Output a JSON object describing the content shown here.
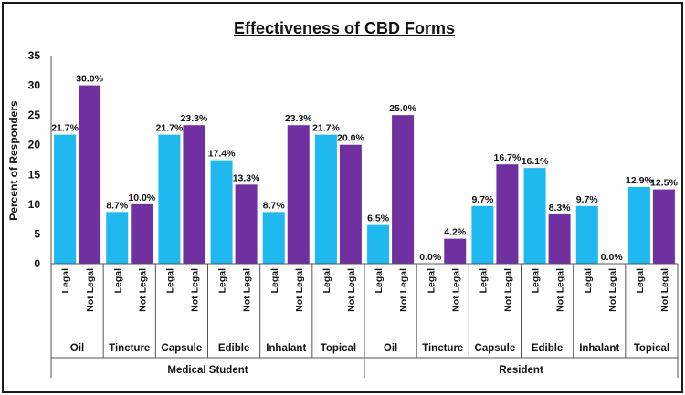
{
  "chart_data": {
    "type": "bar",
    "title": "Effectiveness of CBD Forms",
    "xlabel": "",
    "ylabel": "Percent of Responders",
    "ylim": [
      0,
      35
    ],
    "yticks": [
      "0",
      "5",
      "10",
      "15",
      "20",
      "25",
      "30",
      "35"
    ],
    "legal_color": "#1fb8ef",
    "not_legal_color": "#7030a0",
    "groups": [
      {
        "name": "Medical Student",
        "forms": [
          {
            "form": "Oil",
            "bars": [
              {
                "label": "Legal",
                "value": 21.7,
                "text": "21.7%"
              },
              {
                "label": "Not Legal",
                "value": 30.0,
                "text": "30.0%"
              }
            ]
          },
          {
            "form": "Tincture",
            "bars": [
              {
                "label": "Legal",
                "value": 8.7,
                "text": "8.7%"
              },
              {
                "label": "Not Legal",
                "value": 10.0,
                "text": "10.0%"
              }
            ]
          },
          {
            "form": "Capsule",
            "bars": [
              {
                "label": "Legal",
                "value": 21.7,
                "text": "21.7%"
              },
              {
                "label": "Not Legal",
                "value": 23.3,
                "text": "23.3%"
              }
            ]
          },
          {
            "form": "Edible",
            "bars": [
              {
                "label": "Legal",
                "value": 17.4,
                "text": "17.4%"
              },
              {
                "label": "Not Legal",
                "value": 13.3,
                "text": "13.3%"
              }
            ]
          },
          {
            "form": "Inhalant",
            "bars": [
              {
                "label": "Legal",
                "value": 8.7,
                "text": "8.7%"
              },
              {
                "label": "Not Legal",
                "value": 23.3,
                "text": "23.3%"
              }
            ]
          },
          {
            "form": "Topical",
            "bars": [
              {
                "label": "Legal",
                "value": 21.7,
                "text": "21.7%"
              },
              {
                "label": "Not Legal",
                "value": 20.0,
                "text": "20.0%"
              }
            ]
          }
        ]
      },
      {
        "name": "Resident",
        "forms": [
          {
            "form": "Oil",
            "bars": [
              {
                "label": "Legal",
                "value": 6.5,
                "text": "6.5%"
              },
              {
                "label": "Not Legal",
                "value": 25.0,
                "text": "25.0%"
              }
            ]
          },
          {
            "form": "Tincture",
            "bars": [
              {
                "label": "Legal",
                "value": 0.0,
                "text": "0.0%"
              },
              {
                "label": "Not Legal",
                "value": 4.2,
                "text": "4.2%"
              }
            ]
          },
          {
            "form": "Capsule",
            "bars": [
              {
                "label": "Legal",
                "value": 9.7,
                "text": "9.7%"
              },
              {
                "label": "Not Legal",
                "value": 16.7,
                "text": "16.7%"
              }
            ]
          },
          {
            "form": "Edible",
            "bars": [
              {
                "label": "Legal",
                "value": 16.1,
                "text": "16.1%"
              },
              {
                "label": "Not Legal",
                "value": 8.3,
                "text": "8.3%"
              }
            ]
          },
          {
            "form": "Inhalant",
            "bars": [
              {
                "label": "Legal",
                "value": 9.7,
                "text": "9.7%"
              },
              {
                "label": "Not Legal",
                "value": 0.0,
                "text": "0.0%"
              }
            ]
          },
          {
            "form": "Topical",
            "bars": [
              {
                "label": "Legal",
                "value": 12.9,
                "text": "12.9%"
              },
              {
                "label": "Not Legal",
                "value": 12.5,
                "text": "12.5%"
              }
            ]
          }
        ]
      }
    ]
  }
}
